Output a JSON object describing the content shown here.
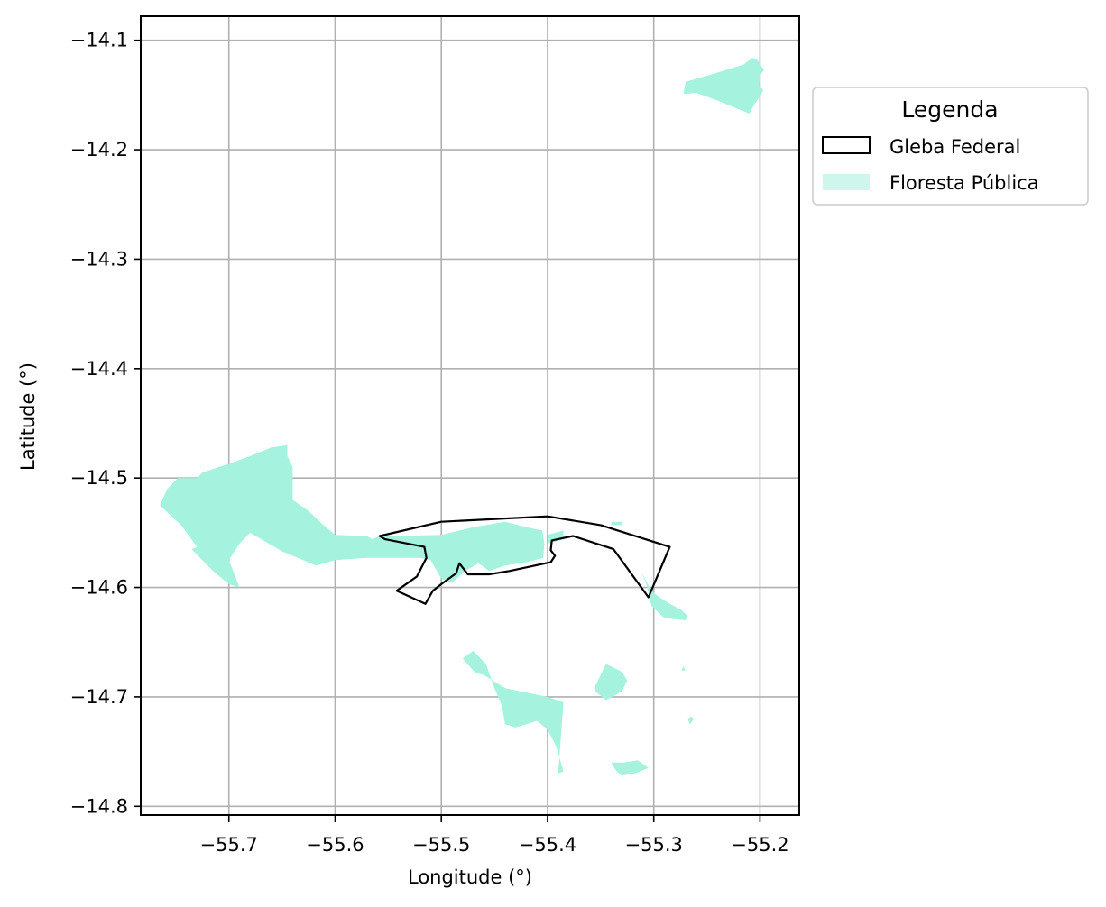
{
  "chart_data": {
    "type": "map",
    "xlabel": "Longitude (°)",
    "ylabel": "Latitude (°)",
    "xlim": [
      -55.783,
      -55.163
    ],
    "ylim": [
      -14.808,
      -14.078
    ],
    "grid": true,
    "xticks": [
      -55.7,
      -55.6,
      -55.5,
      -55.4,
      -55.3,
      -55.2
    ],
    "yticks": [
      -14.1,
      -14.2,
      -14.3,
      -14.4,
      -14.5,
      -14.6,
      -14.7,
      -14.8
    ],
    "xtick_labels": [
      "−55.7",
      "−55.6",
      "−55.5",
      "−55.4",
      "−55.3",
      "−55.2"
    ],
    "ytick_labels": [
      "−14.1",
      "−14.2",
      "−14.3",
      "−14.4",
      "−14.5",
      "−14.6",
      "−14.7",
      "−14.8"
    ],
    "legend": {
      "title": "Legenda",
      "position": "outside-upper-right",
      "entries": [
        {
          "label": "Gleba Federal",
          "style": "outline",
          "color": "#000000"
        },
        {
          "label": "Floresta Pública",
          "style": "fill",
          "color": "#a5f2df"
        }
      ]
    },
    "colors": {
      "forest": "#a5f2df",
      "gleba_outline": "#000000",
      "grid": "#b0b0b0"
    },
    "layers": [
      {
        "name": "Floresta Pública",
        "polygons": [
          [
            [
              -55.27,
              -14.138
            ],
            [
              -55.245,
              -14.131
            ],
            [
              -55.215,
              -14.122
            ],
            [
              -55.208,
              -14.116
            ],
            [
              -55.203,
              -14.117
            ],
            [
              -55.199,
              -14.123
            ],
            [
              -55.196,
              -14.127
            ],
            [
              -55.2,
              -14.132
            ],
            [
              -55.201,
              -14.142
            ],
            [
              -55.197,
              -14.145
            ],
            [
              -55.199,
              -14.15
            ],
            [
              -55.205,
              -14.158
            ],
            [
              -55.21,
              -14.167
            ],
            [
              -55.24,
              -14.155
            ],
            [
              -55.26,
              -14.148
            ],
            [
              -55.272,
              -14.149
            ]
          ],
          [
            [
              -55.765,
              -14.525
            ],
            [
              -55.758,
              -14.51
            ],
            [
              -55.748,
              -14.5
            ],
            [
              -55.73,
              -14.5
            ],
            [
              -55.725,
              -14.495
            ],
            [
              -55.7,
              -14.487
            ],
            [
              -55.68,
              -14.48
            ],
            [
              -55.66,
              -14.472
            ],
            [
              -55.645,
              -14.47
            ],
            [
              -55.645,
              -14.48
            ],
            [
              -55.64,
              -14.49
            ],
            [
              -55.64,
              -14.52
            ],
            [
              -55.625,
              -14.53
            ],
            [
              -55.612,
              -14.542
            ],
            [
              -55.6,
              -14.552
            ],
            [
              -55.57,
              -14.553
            ],
            [
              -55.565,
              -14.556
            ],
            [
              -55.558,
              -14.553
            ],
            [
              -55.54,
              -14.553
            ],
            [
              -55.5,
              -14.552
            ],
            [
              -55.47,
              -14.545
            ],
            [
              -55.44,
              -14.54
            ],
            [
              -55.42,
              -14.545
            ],
            [
              -55.405,
              -14.548
            ],
            [
              -55.403,
              -14.56
            ],
            [
              -55.404,
              -14.573
            ],
            [
              -55.42,
              -14.577
            ],
            [
              -55.44,
              -14.58
            ],
            [
              -55.455,
              -14.585
            ],
            [
              -55.465,
              -14.578
            ],
            [
              -55.478,
              -14.585
            ],
            [
              -55.49,
              -14.596
            ],
            [
              -55.5,
              -14.592
            ],
            [
              -55.51,
              -14.575
            ],
            [
              -55.52,
              -14.573
            ],
            [
              -55.55,
              -14.573
            ],
            [
              -55.57,
              -14.573
            ],
            [
              -55.6,
              -14.575
            ],
            [
              -55.618,
              -14.58
            ],
            [
              -55.65,
              -14.567
            ],
            [
              -55.68,
              -14.55
            ],
            [
              -55.69,
              -14.56
            ],
            [
              -55.7,
              -14.575
            ],
            [
              -55.69,
              -14.6
            ],
            [
              -55.7,
              -14.597
            ],
            [
              -55.715,
              -14.585
            ],
            [
              -55.725,
              -14.575
            ],
            [
              -55.735,
              -14.565
            ],
            [
              -55.73,
              -14.563
            ],
            [
              -55.745,
              -14.543
            ]
          ],
          [
            [
              -55.4,
              -14.552
            ],
            [
              -55.385,
              -14.548
            ],
            [
              -55.385,
              -14.556
            ],
            [
              -55.4,
              -14.56
            ]
          ],
          [
            [
              -55.34,
              -14.54
            ],
            [
              -55.33,
              -14.54
            ],
            [
              -55.33,
              -14.543
            ],
            [
              -55.34,
              -14.543
            ]
          ],
          [
            [
              -55.312,
              -14.585
            ],
            [
              -55.305,
              -14.598
            ],
            [
              -55.3,
              -14.605
            ],
            [
              -55.293,
              -14.61
            ],
            [
              -55.285,
              -14.615
            ],
            [
              -55.275,
              -14.62
            ],
            [
              -55.268,
              -14.626
            ],
            [
              -55.27,
              -14.63
            ],
            [
              -55.29,
              -14.628
            ],
            [
              -55.302,
              -14.617
            ],
            [
              -55.307,
              -14.597
            ]
          ],
          [
            [
              -55.48,
              -14.665
            ],
            [
              -55.47,
              -14.658
            ],
            [
              -55.458,
              -14.67
            ],
            [
              -55.45,
              -14.692
            ],
            [
              -55.443,
              -14.708
            ],
            [
              -55.44,
              -14.725
            ],
            [
              -55.43,
              -14.728
            ],
            [
              -55.41,
              -14.722
            ],
            [
              -55.4,
              -14.73
            ],
            [
              -55.392,
              -14.745
            ],
            [
              -55.385,
              -14.768
            ],
            [
              -55.39,
              -14.77
            ],
            [
              -55.385,
              -14.705
            ],
            [
              -55.4,
              -14.7
            ],
            [
              -55.44,
              -14.692
            ],
            [
              -55.46,
              -14.68
            ],
            [
              -55.468,
              -14.678
            ]
          ],
          [
            [
              -55.345,
              -14.67
            ],
            [
              -55.33,
              -14.677
            ],
            [
              -55.325,
              -14.685
            ],
            [
              -55.33,
              -14.695
            ],
            [
              -55.345,
              -14.703
            ],
            [
              -55.355,
              -14.695
            ],
            [
              -55.355,
              -14.69
            ]
          ],
          [
            [
              -55.315,
              -14.758
            ],
            [
              -55.305,
              -14.765
            ],
            [
              -55.318,
              -14.77
            ],
            [
              -55.33,
              -14.772
            ],
            [
              -55.335,
              -14.768
            ],
            [
              -55.34,
              -14.76
            ],
            [
              -55.328,
              -14.76
            ]
          ],
          [
            [
              -55.265,
              -14.718
            ],
            [
              -55.262,
              -14.72
            ],
            [
              -55.266,
              -14.725
            ],
            [
              -55.268,
              -14.72
            ]
          ],
          [
            [
              -55.272,
              -14.672
            ],
            [
              -55.27,
              -14.676
            ],
            [
              -55.274,
              -14.676
            ]
          ]
        ]
      },
      {
        "name": "Gleba Federal",
        "polygons": [
          [
            [
              -55.558,
              -14.553
            ],
            [
              -55.5,
              -14.54
            ],
            [
              -55.4,
              -14.535
            ],
            [
              -55.35,
              -14.543
            ],
            [
              -55.285,
              -14.563
            ],
            [
              -55.305,
              -14.609
            ],
            [
              -55.338,
              -14.565
            ],
            [
              -55.376,
              -14.553
            ],
            [
              -55.396,
              -14.557
            ],
            [
              -55.397,
              -14.566
            ],
            [
              -55.393,
              -14.571
            ],
            [
              -55.397,
              -14.577
            ],
            [
              -55.436,
              -14.585
            ],
            [
              -55.455,
              -14.588
            ],
            [
              -55.475,
              -14.588
            ],
            [
              -55.483,
              -14.578
            ],
            [
              -55.486,
              -14.587
            ],
            [
              -55.5,
              -14.597
            ],
            [
              -55.508,
              -14.603
            ],
            [
              -55.515,
              -14.615
            ],
            [
              -55.542,
              -14.603
            ],
            [
              -55.523,
              -14.59
            ],
            [
              -55.514,
              -14.573
            ],
            [
              -55.516,
              -14.563
            ],
            [
              -55.553,
              -14.556
            ]
          ]
        ]
      }
    ]
  }
}
